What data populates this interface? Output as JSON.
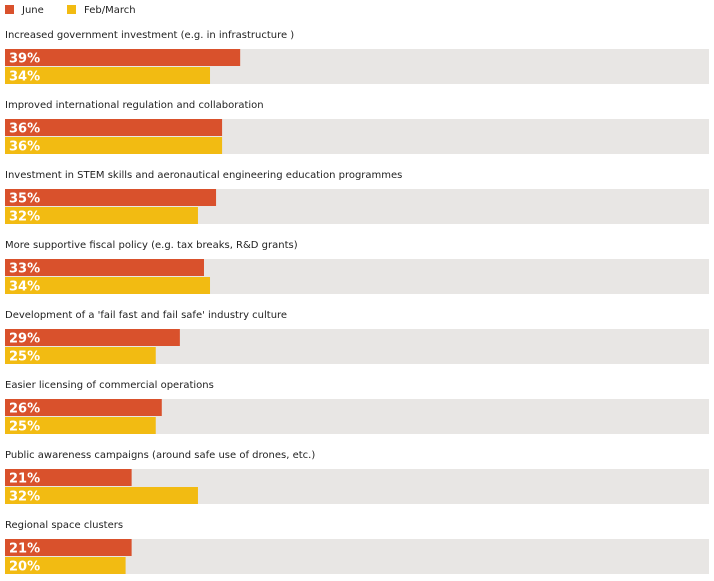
{
  "chart_data": {
    "type": "bar",
    "orientation": "horizontal",
    "categories": [
      "Increased government investment (e.g. in infrastructure )",
      "Improved international regulation and collaboration",
      "Investment in STEM skills and aeronautical engineering education programmes",
      "More supportive fiscal policy (e.g. tax breaks, R&D grants)",
      "Development of a 'fail fast and fail safe' industry culture",
      "Easier licensing of commercial operations",
      "Public awareness campaigns (around safe use of drones, etc.)",
      "Regional space clusters"
    ],
    "series": [
      {
        "name": "June",
        "color": "#d9512c",
        "values": [
          39,
          36,
          35,
          33,
          29,
          26,
          21,
          21
        ]
      },
      {
        "name": "Feb/March",
        "color": "#f2bb12",
        "values": [
          34,
          36,
          32,
          34,
          25,
          25,
          32,
          20
        ]
      }
    ],
    "value_suffix": "%",
    "xlim": [
      0,
      100
    ],
    "background_track_color": "#e8e6e4",
    "legend_position": "top-left",
    "grid": false
  }
}
